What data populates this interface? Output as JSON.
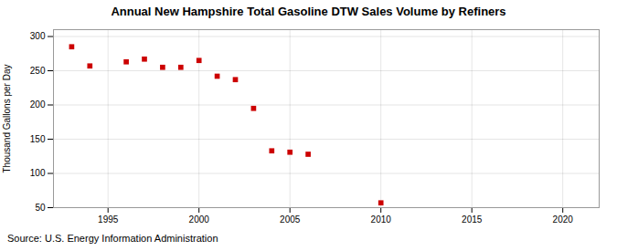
{
  "chart_data": {
    "type": "scatter",
    "title": "Annual New Hampshire Total Gasoline DTW Sales Volume by Refiners",
    "ylabel": "Thousand Gallons per Day",
    "annotation": "Source: U.S. Energy Information Administration",
    "x": [
      1993,
      1994,
      1996,
      1997,
      1998,
      1999,
      2000,
      2001,
      2002,
      2003,
      2004,
      2005,
      2006,
      2010
    ],
    "values": [
      285,
      257,
      263,
      267,
      255,
      255,
      265,
      242,
      237,
      195,
      133,
      131,
      128,
      57
    ],
    "color": "#cc0000",
    "marker": "square",
    "xlim": [
      1992,
      2022
    ],
    "ylim": [
      50,
      310
    ],
    "xticks": [
      1995,
      2000,
      2005,
      2010,
      2015,
      2020
    ],
    "yticks": [
      50,
      100,
      150,
      200,
      250,
      300
    ],
    "grid": true
  }
}
